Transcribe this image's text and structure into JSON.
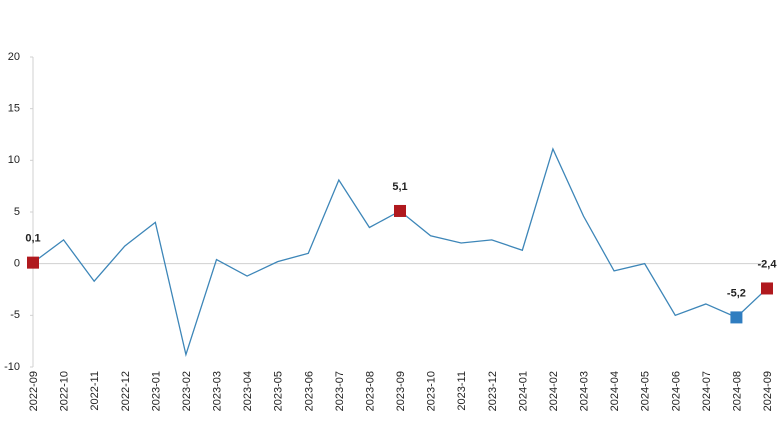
{
  "chart_data": {
    "type": "line",
    "categories": [
      "2022-09",
      "2022-10",
      "2022-11",
      "2022-12",
      "2023-01",
      "2023-02",
      "2023-03",
      "2023-04",
      "2023-05",
      "2023-06",
      "2023-07",
      "2023-08",
      "2023-09",
      "2023-10",
      "2023-11",
      "2023-12",
      "2024-01",
      "2024-02",
      "2024-03",
      "2024-04",
      "2024-05",
      "2024-06",
      "2024-07",
      "2024-08",
      "2024-09"
    ],
    "values": [
      0.1,
      2.3,
      -1.7,
      1.7,
      4.0,
      -8.8,
      0.4,
      -1.2,
      0.2,
      1.0,
      8.1,
      3.5,
      5.1,
      2.7,
      2.0,
      2.3,
      1.3,
      11.1,
      4.6,
      -0.7,
      0.0,
      -5.0,
      -3.9,
      -5.2,
      -2.4
    ],
    "value_labels": [
      "0,1",
      null,
      null,
      null,
      null,
      null,
      null,
      null,
      null,
      null,
      null,
      null,
      "5,1",
      null,
      null,
      null,
      null,
      null,
      null,
      null,
      null,
      null,
      null,
      "-5,2",
      "-2,4"
    ],
    "marker_colors": [
      "#b0191e",
      null,
      null,
      null,
      null,
      null,
      null,
      null,
      null,
      null,
      null,
      null,
      "#b0191e",
      null,
      null,
      null,
      null,
      null,
      null,
      null,
      null,
      null,
      null,
      "#2f7dc0",
      "#b0191e"
    ],
    "color": "#3d86b8",
    "ylim": [
      -10,
      20
    ],
    "yticks": [
      -10,
      -5,
      0,
      5,
      10,
      15,
      20
    ]
  }
}
